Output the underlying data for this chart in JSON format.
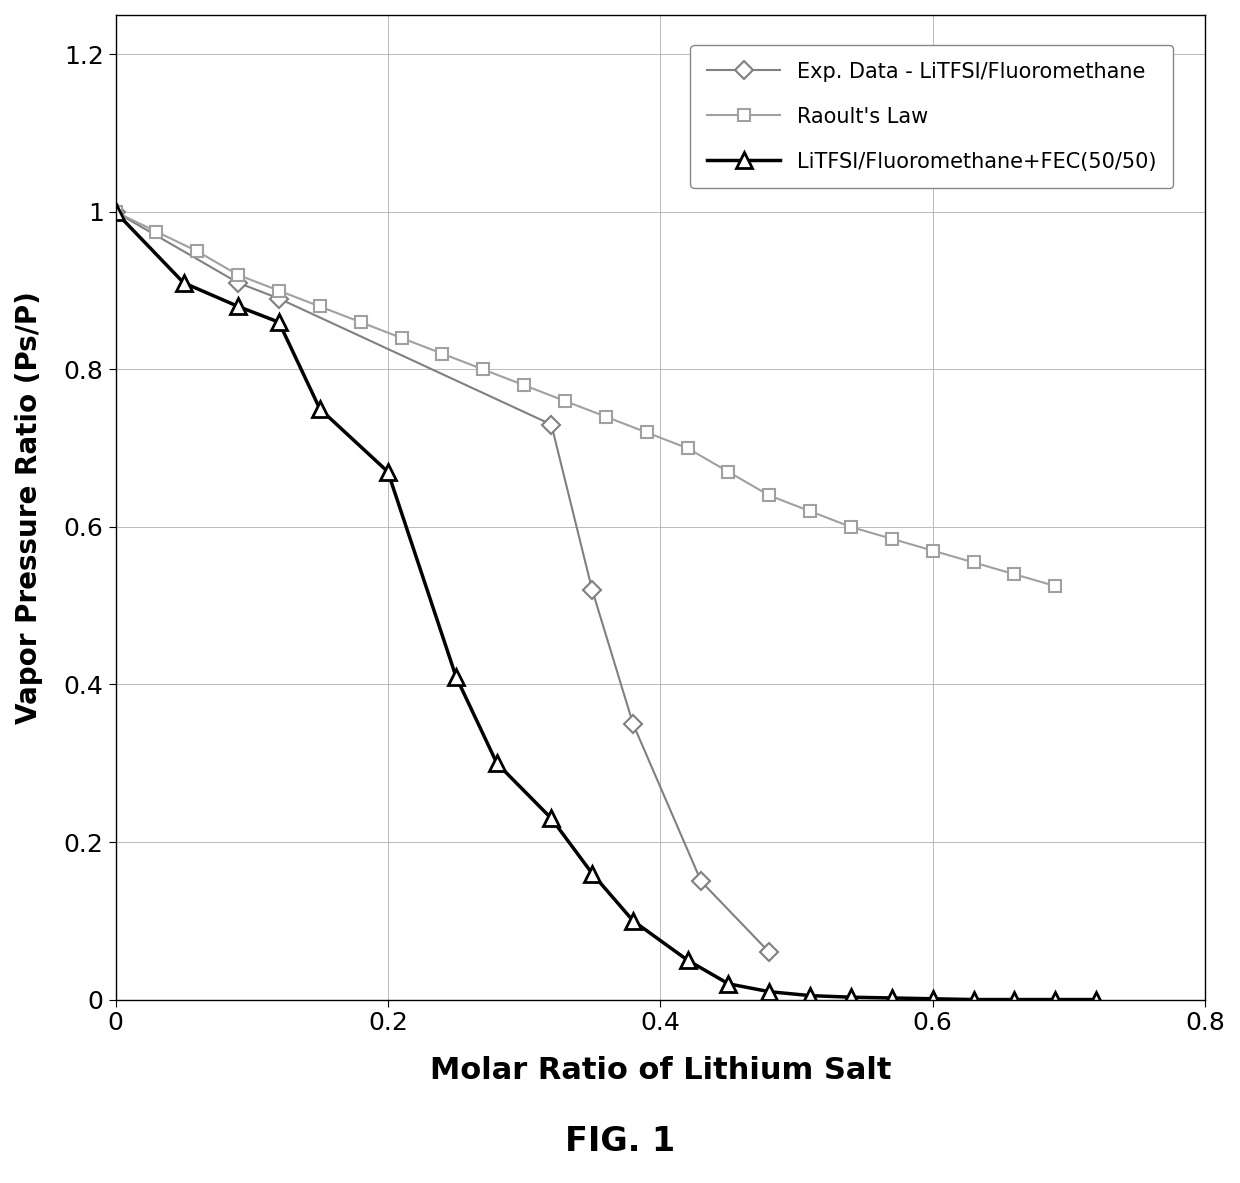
{
  "title": "FIG. 1",
  "xlabel": "Molar Ratio of Lithium Salt",
  "ylabel": "Vapor Pressure Ratio (Ps/P)",
  "xlim": [
    0,
    0.8
  ],
  "ylim": [
    0,
    1.25
  ],
  "xticks": [
    0,
    0.2,
    0.4,
    0.6,
    0.8
  ],
  "yticks": [
    0,
    0.2,
    0.4,
    0.6,
    0.8,
    1.0,
    1.2
  ],
  "exp_data_x": [
    0.0,
    0.09,
    0.12,
    0.32,
    0.35,
    0.38,
    0.43,
    0.48
  ],
  "exp_data_y": [
    1.0,
    0.91,
    0.89,
    0.73,
    0.52,
    0.35,
    0.15,
    0.06
  ],
  "raoult_x": [
    0.0,
    0.03,
    0.06,
    0.09,
    0.12,
    0.15,
    0.18,
    0.21,
    0.24,
    0.27,
    0.3,
    0.33,
    0.36,
    0.39,
    0.42,
    0.45,
    0.48,
    0.51,
    0.54,
    0.57,
    0.6,
    0.63,
    0.66,
    0.69
  ],
  "raoult_y": [
    1.0,
    0.975,
    0.95,
    0.92,
    0.9,
    0.88,
    0.86,
    0.84,
    0.82,
    0.8,
    0.78,
    0.76,
    0.74,
    0.72,
    0.7,
    0.67,
    0.64,
    0.62,
    0.6,
    0.585,
    0.57,
    0.555,
    0.54,
    0.525
  ],
  "fec_x": [
    0.0,
    0.05,
    0.09,
    0.12,
    0.15,
    0.2,
    0.25,
    0.28,
    0.32,
    0.35,
    0.38,
    0.42,
    0.45,
    0.48,
    0.51,
    0.54,
    0.57,
    0.6,
    0.63,
    0.66,
    0.69,
    0.72
  ],
  "fec_y": [
    1.0,
    0.91,
    0.88,
    0.86,
    0.75,
    0.67,
    0.41,
    0.3,
    0.23,
    0.16,
    0.1,
    0.05,
    0.02,
    0.01,
    0.005,
    0.003,
    0.002,
    0.001,
    0.0,
    0.0,
    0.0,
    0.0
  ],
  "exp_color": "#808080",
  "raoult_color": "#a0a0a0",
  "fec_color": "#000000",
  "legend_labels": [
    "Exp. Data - LiTFSI/Fluoromethane",
    "Raoult's Law",
    "LiTFSI/Fluoromethane+FEC(50/50)"
  ]
}
